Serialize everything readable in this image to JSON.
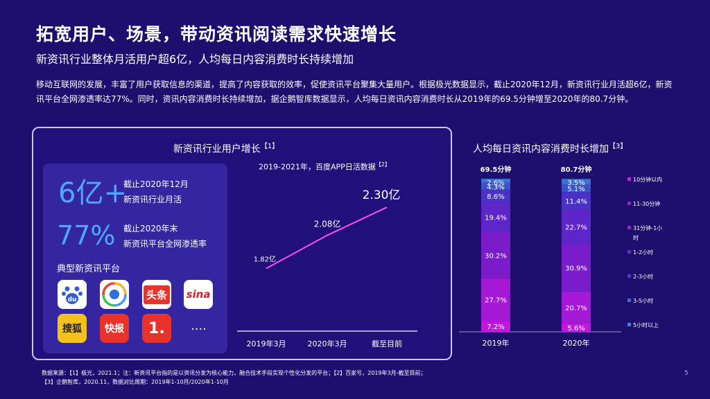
{
  "page": {
    "title": "拓宽用户、场景，带动资讯阅读需求快速增长",
    "subtitle": "新资讯行业整体月活用户超6亿，人均每日内容消费时长持续增加",
    "intro": "移动互联网的发展，丰富了用户获取信息的渠道，提高了内容获取的效率，促使资讯平台聚集大量用户。根据极光数据显示，截止2020年12月，新资讯行业月活超6亿，新资讯平台全网渗透率达77%。同时，资讯内容消费时长持续增加，据企鹅智库数据显示，人均每日资讯内容消费时长从2019年的69.5分钟增至2020年的80.7分钟。",
    "page_number": "5"
  },
  "left_panel": {
    "title": "新资讯行业用户增长",
    "title_ref": "【1】",
    "stat1_value": "6亿+",
    "stat1_label_1": "截止2020年12月",
    "stat1_label_2": "新资讯行业月活",
    "stat2_value": "77%",
    "stat2_label_1": "截止2020年末",
    "stat2_label_2": "新资讯平台全网渗透率",
    "platforms_title": "典型新资讯平台",
    "platforms": [
      "百度",
      "腾讯新闻",
      "头条",
      "新浪",
      "搜狐",
      "快报",
      "一点资讯"
    ],
    "icon_texts": {
      "baidu": "du",
      "toutiao": "头条",
      "sina": "sina",
      "sohu": "搜狐",
      "kuaibao": "快报",
      "yidian": "1."
    },
    "ellipsis": "...."
  },
  "footnote": {
    "line1": "数据来源：【1】极光，2021.1；注：新资讯平台指的是以资讯分发为核心能力，融合技术手段实现个性化分发的平台；【2】百家号，2019年3月-截至目前；",
    "line2": "【3】企鹅智库，2020.11，数据对比周期：2019年1-10月/2020年1-10月"
  },
  "chart_data": [
    {
      "type": "line",
      "title": "2019-2021年，百度APP日活数据",
      "title_ref": "【2】",
      "categories": [
        "2019年3月",
        "2020年3月",
        "截至目前"
      ],
      "values": [
        1.82,
        2.08,
        2.3
      ],
      "data_labels": [
        "1.82亿",
        "2.08亿",
        "2.30亿"
      ],
      "unit": "亿",
      "color": "#ff4fe6"
    },
    {
      "type": "bar",
      "stacked": true,
      "title": "人均每日资讯内容消费时长增加",
      "title_ref": "【3】",
      "categories": [
        "2019年",
        "2020年"
      ],
      "totals": [
        "69.5分钟",
        "80.7分钟"
      ],
      "series": [
        {
          "name": "5小时以上",
          "values": [
            7.2,
            5.6
          ],
          "labels": [
            "7.2%",
            "5.6%"
          ],
          "color": "#c215e0"
        },
        {
          "name": "3-5小时",
          "values": [
            27.7,
            20.7
          ],
          "labels": [
            "27.7%",
            "20.7%"
          ],
          "color": "#a519d6"
        },
        {
          "name": "2-3小时",
          "values": [
            30.2,
            30.9
          ],
          "labels": [
            "30.2%",
            "30.9%"
          ],
          "color": "#7a1cc9"
        },
        {
          "name": "1-2小时",
          "values": [
            19.4,
            22.7
          ],
          "labels": [
            "19.4%",
            "22.7%"
          ],
          "color": "#5e25c8"
        },
        {
          "name": "31分钟-1小时",
          "values": [
            8.6,
            11.4
          ],
          "labels": [
            "8.6%",
            "11.4%"
          ],
          "color": "#4932c4"
        },
        {
          "name": "11-30分钟",
          "values": [
            4.3,
            5.1
          ],
          "labels": [
            "4.3%",
            "5.1%"
          ],
          "color": "#3b53c9"
        },
        {
          "name": "10分钟以内",
          "values": [
            2.6,
            3.5
          ],
          "labels": [
            "2.6%",
            "3.5%"
          ],
          "color": "#3a72d6"
        }
      ],
      "legend": [
        "10分钟以内",
        "11-30分钟",
        "31分钟-1小时",
        "1-2小时",
        "2-3小时",
        "3-5小时",
        "5小时以上"
      ],
      "legend_position": "right",
      "legend_colors": [
        "#d21fd9",
        "#a319d2",
        "#8a2bd2",
        "#6a2ad0",
        "#4f3bd0",
        "#3a6ad8",
        "#2f8ae6"
      ]
    }
  ]
}
